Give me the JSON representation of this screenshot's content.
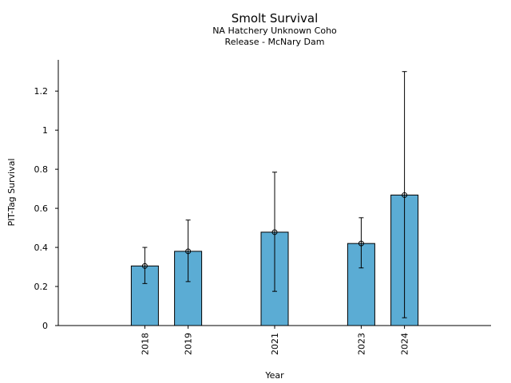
{
  "chart_data": {
    "type": "bar",
    "title": "Smolt Survival",
    "subtitle_lines": [
      "NA Hatchery Unknown Coho",
      "Release - McNary Dam"
    ],
    "xlabel": "Year",
    "ylabel": "PIT-Tag Survival",
    "x": [
      2018,
      2019,
      2021,
      2023,
      2024
    ],
    "x_tick_labels": [
      "2018",
      "2019",
      "2021",
      "2023",
      "2024"
    ],
    "xlim": [
      2016.0,
      2026.0
    ],
    "values": [
      0.305,
      0.38,
      0.478,
      0.42,
      0.668
    ],
    "error_low": [
      0.215,
      0.225,
      0.175,
      0.295,
      0.04
    ],
    "error_high": [
      0.4,
      0.54,
      0.785,
      0.552,
      1.3
    ],
    "ylim": [
      0,
      1.36
    ],
    "y_ticks": [
      0,
      0.2,
      0.4,
      0.6,
      0.8,
      1,
      1.2
    ],
    "y_tick_labels": [
      "0",
      "0.2",
      "0.4",
      "0.6",
      "0.8",
      "1",
      "1.2"
    ],
    "bar_color": "#5bacd4",
    "grid": false,
    "legend": "none"
  }
}
